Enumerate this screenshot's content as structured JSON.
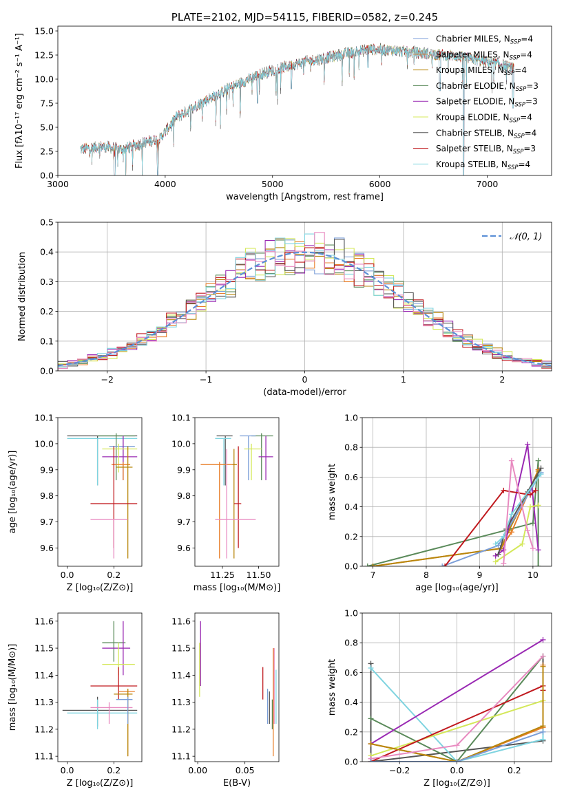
{
  "chart_data": [
    {
      "id": "spectrum",
      "type": "line",
      "title": "PLATE=2102, MJD=54115, FIBERID=0582, z=0.245",
      "xlabel": "wavelength [Angstrom, rest frame]",
      "ylabel": "Flux [fλ10⁻¹⁷ erg cm⁻² s⁻¹ A⁻¹]",
      "xlim": [
        3000,
        7600
      ],
      "ylim": [
        0,
        15.5
      ],
      "xticks": [
        3000,
        4000,
        5000,
        6000,
        7000
      ],
      "yticks": [
        0.0,
        2.5,
        5.0,
        7.5,
        10.0,
        12.5,
        15.0
      ],
      "grid": false,
      "legend_position": "top-right",
      "data_start_wavelength": 3210,
      "continuum": [
        [
          3210,
          2.7
        ],
        [
          3400,
          3.0
        ],
        [
          3600,
          2.7
        ],
        [
          3800,
          3.4
        ],
        [
          3950,
          3.8
        ],
        [
          4100,
          6.0
        ],
        [
          4300,
          7.3
        ],
        [
          4500,
          8.5
        ],
        [
          4700,
          9.6
        ],
        [
          4900,
          10.6
        ],
        [
          5100,
          11.2
        ],
        [
          5300,
          11.8
        ],
        [
          5500,
          12.2
        ],
        [
          5700,
          12.7
        ],
        [
          5900,
          13.1
        ],
        [
          6100,
          13.0
        ],
        [
          6300,
          12.8
        ],
        [
          6500,
          12.6
        ],
        [
          6700,
          12.4
        ],
        [
          6900,
          12.0
        ],
        [
          7100,
          11.6
        ],
        [
          7250,
          11.1
        ]
      ],
      "notable_features": [
        [
          3530,
          0.0
        ],
        [
          3930,
          0.0
        ],
        [
          4860,
          7.5
        ],
        [
          5175,
          9.0
        ],
        [
          5890,
          11.2
        ],
        [
          6560,
          8.8
        ],
        [
          6780,
          0.0
        ],
        [
          7240,
          7.0
        ]
      ],
      "series": [
        {
          "name": "Chabrier MILES, N",
          "sub": "SSP",
          "val": "=4",
          "color": "#7b9ed8"
        },
        {
          "name": "Salpeter MILES, N",
          "sub": "SSP",
          "val": "=4",
          "color": "#e87f2a"
        },
        {
          "name": "Kroupa MILES, N",
          "sub": "SSP",
          "val": "=4",
          "color": "#b8860b"
        },
        {
          "name": "Chabrier ELODIE, N",
          "sub": "SSP",
          "val": "=3",
          "color": "#5a8a5a"
        },
        {
          "name": "Salpeter ELODIE, N",
          "sub": "SSP",
          "val": "=3",
          "color": "#9a2ab3"
        },
        {
          "name": "Kroupa ELODIE, N",
          "sub": "SSP",
          "val": "=4",
          "color": "#d4e85a"
        },
        {
          "name": "Chabrier STELIB, N",
          "sub": "SSP",
          "val": "=4",
          "color": "#555555"
        },
        {
          "name": "Salpeter STELIB, N",
          "sub": "SSP",
          "val": "=3",
          "color": "#c0191e"
        },
        {
          "name": "Kroupa STELIB, N",
          "sub": "SSP",
          "val": "=4",
          "color": "#7fd4e0"
        }
      ]
    },
    {
      "id": "residuals",
      "type": "histogram",
      "xlabel": "(data-model)/error",
      "ylabel": "Normed distribution",
      "xlim": [
        -2.5,
        2.5
      ],
      "ylim": [
        0,
        0.5
      ],
      "xticks": [
        -2,
        -1,
        0,
        1,
        2
      ],
      "yticks": [
        0.0,
        0.1,
        0.2,
        0.3,
        0.4,
        0.5
      ],
      "grid": true,
      "legend_position": "top-right",
      "legend": "𝒩(0, 1)",
      "reference_curve": {
        "type": "gaussian",
        "mean": 0,
        "sigma": 1,
        "color": "#5b8fd6"
      },
      "bin_width": 0.1,
      "colors": [
        "#7b9ed8",
        "#e87f2a",
        "#b8860b",
        "#5a8a5a",
        "#9a2ab3",
        "#d4e85a",
        "#555555",
        "#c0191e",
        "#7fd4e0",
        "#e88ac0"
      ]
    },
    {
      "id": "age_vs_Z",
      "type": "errorbar",
      "xlabel": "Z [log₁₀(Z/Z⊙)]",
      "ylabel": "age  [log₁₀(age/yr)]",
      "xlim": [
        -0.04,
        0.32
      ],
      "ylim": [
        9.53,
        10.1
      ],
      "xticks": [
        0.0,
        0.2
      ],
      "yticks": [
        9.6,
        9.7,
        9.8,
        9.9,
        10.0,
        10.1
      ],
      "points": [
        {
          "x": 0.13,
          "y": 10.03,
          "xlo": 0.0,
          "xhi": 0.3,
          "ylo": 9.84,
          "yhi": 10.03,
          "color": "#555555"
        },
        {
          "x": 0.13,
          "y": 10.02,
          "xlo": 0.0,
          "xhi": 0.3,
          "ylo": 9.84,
          "yhi": 10.02,
          "color": "#7fd4e0"
        },
        {
          "x": 0.21,
          "y": 10.03,
          "xlo": 0.13,
          "xhi": 0.29,
          "ylo": 9.86,
          "yhi": 10.04,
          "color": "#5a8a5a"
        },
        {
          "x": 0.24,
          "y": 9.99,
          "xlo": 0.18,
          "xhi": 0.29,
          "ylo": 9.86,
          "yhi": 10.03,
          "color": "#7b9ed8"
        },
        {
          "x": 0.24,
          "y": 9.95,
          "xlo": 0.15,
          "xhi": 0.3,
          "ylo": 9.86,
          "yhi": 10.03,
          "color": "#9a2ab3"
        },
        {
          "x": 0.22,
          "y": 9.98,
          "xlo": 0.15,
          "xhi": 0.3,
          "ylo": 9.89,
          "yhi": 10.0,
          "color": "#d4e85a"
        },
        {
          "x": 0.24,
          "y": 9.92,
          "xlo": 0.19,
          "xhi": 0.27,
          "ylo": 9.86,
          "yhi": 9.93,
          "color": "#e87f2a"
        },
        {
          "x": 0.26,
          "y": 9.91,
          "xlo": 0.21,
          "xhi": 0.28,
          "ylo": 9.56,
          "yhi": 9.99,
          "color": "#b8860b"
        },
        {
          "x": 0.2,
          "y": 9.77,
          "xlo": 0.1,
          "xhi": 0.3,
          "ylo": 9.6,
          "yhi": 9.99,
          "color": "#c0191e"
        },
        {
          "x": 0.2,
          "y": 9.71,
          "xlo": 0.1,
          "xhi": 0.26,
          "ylo": 9.56,
          "yhi": 9.71,
          "color": "#e88ac0"
        }
      ]
    },
    {
      "id": "age_vs_mass",
      "type": "errorbar",
      "xlabel": "mass [log₁₀(M/M⊙)]",
      "ylabel": "",
      "xlim": [
        11.06,
        11.64
      ],
      "ylim": [
        9.53,
        10.1
      ],
      "xticks": [
        11.25,
        11.5
      ],
      "yticks": [
        9.6,
        9.7,
        9.8,
        9.9,
        10.0,
        10.1
      ],
      "points": [
        {
          "x": 11.27,
          "y": 10.03,
          "xlo": 11.21,
          "xhi": 11.32,
          "ylo": 9.84,
          "yhi": 10.03,
          "color": "#555555"
        },
        {
          "x": 11.26,
          "y": 10.02,
          "xlo": 11.2,
          "xhi": 11.31,
          "ylo": 9.84,
          "yhi": 10.02,
          "color": "#7fd4e0"
        },
        {
          "x": 11.52,
          "y": 10.03,
          "xlo": 11.45,
          "xhi": 11.6,
          "ylo": 9.86,
          "yhi": 10.04,
          "color": "#5a8a5a"
        },
        {
          "x": 11.43,
          "y": 10.03,
          "xlo": 11.37,
          "xhi": 11.48,
          "ylo": 9.86,
          "yhi": 10.03,
          "color": "#7b9ed8"
        },
        {
          "x": 11.55,
          "y": 9.95,
          "xlo": 11.5,
          "xhi": 11.6,
          "ylo": 9.86,
          "yhi": 10.03,
          "color": "#9a2ab3"
        },
        {
          "x": 11.45,
          "y": 9.98,
          "xlo": 11.4,
          "xhi": 11.52,
          "ylo": 9.86,
          "yhi": 10.0,
          "color": "#d4e85a"
        },
        {
          "x": 11.23,
          "y": 9.92,
          "xlo": 11.1,
          "xhi": 11.34,
          "ylo": 9.56,
          "yhi": 9.93,
          "color": "#e87f2a"
        },
        {
          "x": 11.33,
          "y": 9.92,
          "xlo": 11.32,
          "xhi": 11.35,
          "ylo": 9.56,
          "yhi": 9.98,
          "color": "#b8860b"
        },
        {
          "x": 11.36,
          "y": 9.77,
          "xlo": 11.33,
          "xhi": 11.38,
          "ylo": 9.6,
          "yhi": 9.99,
          "color": "#c0191e"
        },
        {
          "x": 11.28,
          "y": 9.71,
          "xlo": 11.2,
          "xhi": 11.48,
          "ylo": 9.56,
          "yhi": 9.98,
          "color": "#e88ac0"
        }
      ]
    },
    {
      "id": "weight_vs_age",
      "type": "line",
      "xlabel": "age  [log₁₀(age/yr)]",
      "ylabel": "mass weight",
      "xlim": [
        6.8,
        10.35
      ],
      "ylim": [
        0,
        1.0
      ],
      "xticks": [
        7,
        8,
        9,
        10
      ],
      "yticks": [
        0.0,
        0.2,
        0.4,
        0.6,
        0.8,
        1.0
      ],
      "grid": true,
      "series": [
        {
          "color": "#5a8a5a",
          "x": [
            6.9,
            10.0,
            10.1,
            10.1
          ],
          "y": [
            0.0,
            0.29,
            0.71,
            0.0
          ]
        },
        {
          "color": "#e87f2a",
          "x": [
            7.0,
            9.4,
            9.6,
            10.1
          ],
          "y": [
            0.0,
            0.12,
            0.23,
            0.65
          ]
        },
        {
          "color": "#b8860b",
          "x": [
            7.0,
            9.4,
            9.55,
            10.1
          ],
          "y": [
            0.0,
            0.12,
            0.24,
            0.64
          ]
        },
        {
          "color": "#7b9ed8",
          "x": [
            8.3,
            9.35,
            9.45,
            10.15
          ],
          "y": [
            0.0,
            0.14,
            0.2,
            0.63
          ]
        },
        {
          "color": "#9a2ab3",
          "x": [
            9.3,
            9.45,
            9.9,
            10.1
          ],
          "y": [
            0.07,
            0.11,
            0.82,
            0.11
          ]
        },
        {
          "color": "#d4e85a",
          "x": [
            9.3,
            9.8,
            9.95,
            10.1
          ],
          "y": [
            0.03,
            0.15,
            0.4,
            0.41
          ]
        },
        {
          "color": "#555555",
          "x": [
            9.35,
            9.5,
            9.9,
            10.15
          ],
          "y": [
            0.08,
            0.25,
            0.5,
            0.66
          ]
        },
        {
          "color": "#c0191e",
          "x": [
            8.35,
            9.45,
            9.95,
            10.05
          ],
          "y": [
            0.0,
            0.51,
            0.48,
            0.51
          ]
        },
        {
          "color": "#7fd4e0",
          "x": [
            9.3,
            9.45,
            9.6,
            10.15
          ],
          "y": [
            0.15,
            0.2,
            0.35,
            0.62
          ]
        },
        {
          "color": "#e88ac0",
          "x": [
            9.45,
            9.6,
            9.9,
            10.0
          ],
          "y": [
            0.02,
            0.71,
            0.24,
            0.12
          ]
        }
      ]
    },
    {
      "id": "mass_vs_Z",
      "type": "errorbar",
      "xlabel": "Z [log₁₀(Z/Z⊙)]",
      "ylabel": "mass [log₁₀(M/M⊙)]",
      "xlim": [
        -0.04,
        0.32
      ],
      "ylim": [
        11.08,
        11.63
      ],
      "xticks": [
        0.0,
        0.2
      ],
      "yticks": [
        11.1,
        11.2,
        11.3,
        11.4,
        11.5,
        11.6
      ],
      "points": [
        {
          "x": 0.13,
          "y": 11.27,
          "xlo": -0.02,
          "xhi": 0.3,
          "ylo": 11.21,
          "yhi": 11.32,
          "color": "#555555"
        },
        {
          "x": 0.13,
          "y": 11.26,
          "xlo": 0.0,
          "xhi": 0.3,
          "ylo": 11.2,
          "yhi": 11.31,
          "color": "#7fd4e0"
        },
        {
          "x": 0.2,
          "y": 11.52,
          "xlo": 0.15,
          "xhi": 0.25,
          "ylo": 11.45,
          "yhi": 11.6,
          "color": "#5a8a5a"
        },
        {
          "x": 0.24,
          "y": 11.5,
          "xlo": 0.15,
          "xhi": 0.27,
          "ylo": 11.4,
          "yhi": 11.6,
          "color": "#9a2ab3"
        },
        {
          "x": 0.22,
          "y": 11.44,
          "xlo": 0.15,
          "xhi": 0.29,
          "ylo": 11.4,
          "yhi": 11.52,
          "color": "#d4e85a"
        },
        {
          "x": 0.22,
          "y": 11.36,
          "xlo": 0.1,
          "xhi": 0.3,
          "ylo": 11.31,
          "yhi": 11.43,
          "color": "#c0191e"
        },
        {
          "x": 0.26,
          "y": 11.34,
          "xlo": 0.22,
          "xhi": 0.29,
          "ylo": 11.1,
          "yhi": 11.35,
          "color": "#e87f2a"
        },
        {
          "x": 0.26,
          "y": 11.33,
          "xlo": 0.2,
          "xhi": 0.28,
          "ylo": 11.1,
          "yhi": 11.35,
          "color": "#b8860b"
        },
        {
          "x": 0.18,
          "y": 11.28,
          "xlo": 0.1,
          "xhi": 0.28,
          "ylo": 11.22,
          "yhi": 11.3,
          "color": "#e88ac0"
        },
        {
          "x": 0.26,
          "y": 11.31,
          "xlo": 0.21,
          "xhi": 0.28,
          "ylo": 11.22,
          "yhi": 11.32,
          "color": "#7b9ed8"
        }
      ]
    },
    {
      "id": "mass_vs_ebv",
      "type": "errorbar",
      "xlabel": "E(B-V)",
      "ylabel": "",
      "xlim": [
        -0.003,
        0.086
      ],
      "ylim": [
        11.08,
        11.63
      ],
      "xticks": [
        0.0,
        0.05
      ],
      "xtick_labels": [
        "0.00",
        "0.05"
      ],
      "yticks": [
        11.1,
        11.2,
        11.3,
        11.4,
        11.5,
        11.6
      ],
      "points": [
        {
          "x": 0.003,
          "y": 11.5,
          "ylo": 11.36,
          "yhi": 11.6,
          "color": "#9a2ab3"
        },
        {
          "x": 0.002,
          "y": 11.44,
          "ylo": 11.32,
          "yhi": 11.52,
          "color": "#d4e85a"
        },
        {
          "x": 0.069,
          "y": 11.36,
          "ylo": 11.31,
          "yhi": 11.43,
          "color": "#c0191e"
        },
        {
          "x": 0.074,
          "y": 11.29,
          "ylo": 11.22,
          "yhi": 11.35,
          "color": "#7b9ed8"
        },
        {
          "x": 0.076,
          "y": 11.29,
          "ylo": 11.22,
          "yhi": 11.34,
          "color": "#555555"
        },
        {
          "x": 0.079,
          "y": 11.27,
          "ylo": 11.2,
          "yhi": 11.31,
          "color": "#5a8a5a"
        },
        {
          "x": 0.08,
          "y": 11.32,
          "ylo": 11.1,
          "yhi": 11.5,
          "color": "#e87f2a"
        },
        {
          "x": 0.081,
          "y": 11.3,
          "ylo": 11.22,
          "yhi": 11.5,
          "color": "#e88ac0"
        },
        {
          "x": 0.083,
          "y": 11.32,
          "ylo": 11.22,
          "yhi": 11.42,
          "color": "#7fd4e0"
        }
      ]
    },
    {
      "id": "weight_vs_Z",
      "type": "line",
      "xlabel": "Z [log₁₀(Z/Z⊙)]",
      "ylabel": "mass weight",
      "xlim": [
        -0.33,
        0.33
      ],
      "ylim": [
        0,
        1.0
      ],
      "xticks": [
        -0.2,
        0.0,
        0.2
      ],
      "yticks": [
        0.0,
        0.2,
        0.4,
        0.6,
        0.8,
        1.0
      ],
      "grid": true,
      "series": [
        {
          "color": "#555555",
          "x": [
            -0.3,
            -0.3,
            0.3,
            0.3
          ],
          "y": [
            0.66,
            0.0,
            0.14,
            0.71
          ]
        },
        {
          "color": "#7fd4e0",
          "x": [
            -0.3,
            0.0,
            0.3,
            0.3
          ],
          "y": [
            0.63,
            0.0,
            0.15,
            0.24
          ]
        },
        {
          "color": "#5a8a5a",
          "x": [
            -0.3,
            0.0,
            0.3
          ],
          "y": [
            0.29,
            0.0,
            0.71
          ]
        },
        {
          "color": "#9a2ab3",
          "x": [
            -0.3,
            0.3
          ],
          "y": [
            0.12,
            0.82
          ]
        },
        {
          "color": "#d4e85a",
          "x": [
            -0.3,
            0.3
          ],
          "y": [
            0.04,
            0.41
          ]
        },
        {
          "color": "#c0191e",
          "x": [
            -0.3,
            0.3,
            0.3
          ],
          "y": [
            0.0,
            0.51,
            0.48
          ]
        },
        {
          "color": "#e87f2a",
          "x": [
            -0.3,
            0.0,
            0.3,
            0.3
          ],
          "y": [
            0.12,
            0.0,
            0.23,
            0.65
          ]
        },
        {
          "color": "#b8860b",
          "x": [
            -0.3,
            0.0,
            0.3,
            0.3
          ],
          "y": [
            0.12,
            0.0,
            0.24,
            0.64
          ]
        },
        {
          "color": "#e88ac0",
          "x": [
            -0.3,
            0.0,
            0.3
          ],
          "y": [
            0.02,
            0.11,
            0.71
          ]
        },
        {
          "color": "#7b9ed8",
          "x": [
            -0.3,
            0.0,
            0.3
          ],
          "y": [
            0.0,
            0.0,
            0.2
          ]
        }
      ]
    }
  ]
}
